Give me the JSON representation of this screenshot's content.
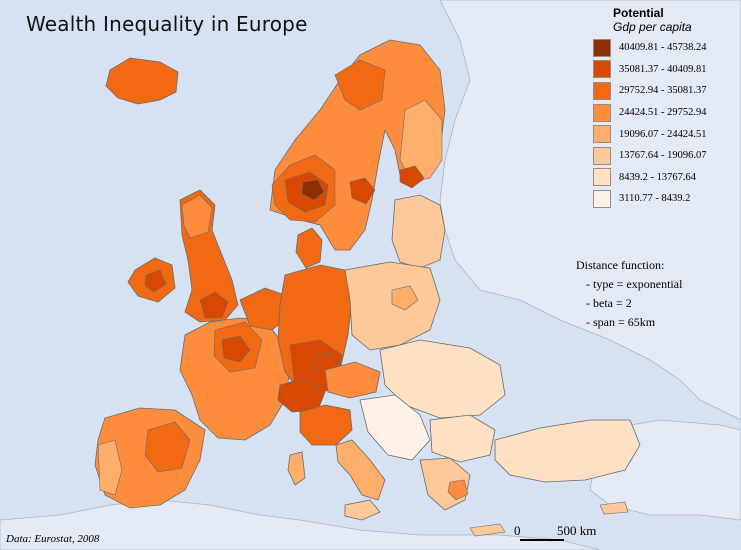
{
  "title": "Wealth Inequality in Europe",
  "legend": {
    "title": "Potential",
    "subtitle": "Gdp per capita",
    "classes": [
      {
        "label": "40409.81 - 45738.24",
        "color": "#8c2d04"
      },
      {
        "label": "35081.37 - 40409.81",
        "color": "#d94801"
      },
      {
        "label": "29752.94 - 35081.37",
        "color": "#f16913"
      },
      {
        "label": "24424.51 - 29752.94",
        "color": "#fd8d3c"
      },
      {
        "label": "19096.07 - 24424.51",
        "color": "#fdae6b"
      },
      {
        "label": "13767.64 - 19096.07",
        "color": "#fdc99a"
      },
      {
        "label": "8439.2 - 13767.64",
        "color": "#fee0c4"
      },
      {
        "label": "3110.77 - 8439.2",
        "color": "#fff1e6"
      }
    ]
  },
  "distance_function": {
    "heading": "Distance function:",
    "type": "- type = exponential",
    "beta": "- beta = 2",
    "span": "- span = 65km"
  },
  "credit": "Data: Eurostat, 2008",
  "scale": {
    "zero": "0",
    "label": "500 km"
  },
  "colors": {
    "sea": "#d6e1f1",
    "land_outside": "#e2e9f4",
    "border": "#6b6b6b"
  }
}
